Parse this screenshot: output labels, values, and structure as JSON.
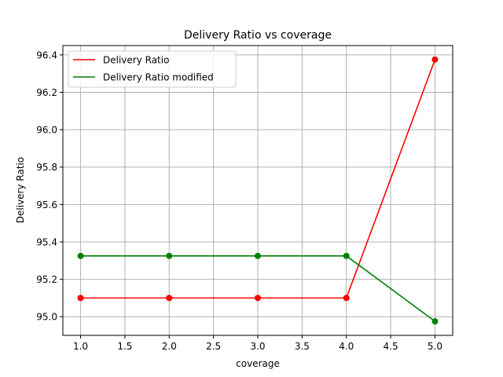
{
  "chart_data": {
    "type": "line",
    "title": "Delivery Ratio vs coverage",
    "xlabel": "coverage",
    "ylabel": "Delivery Ratio",
    "xlim": [
      0.8,
      5.2
    ],
    "ylim": [
      94.9,
      96.45
    ],
    "xticks": [
      1.0,
      1.5,
      2.0,
      2.5,
      3.0,
      3.5,
      4.0,
      4.5,
      5.0
    ],
    "xtick_labels": [
      "1.0",
      "1.5",
      "2.0",
      "2.5",
      "3.0",
      "3.5",
      "4.0",
      "4.5",
      "5.0"
    ],
    "yticks": [
      95.0,
      95.2,
      95.4,
      95.6,
      95.8,
      96.0,
      96.2,
      96.4
    ],
    "ytick_labels": [
      "95.0",
      "95.2",
      "95.4",
      "95.6",
      "95.8",
      "96.0",
      "96.2",
      "96.4"
    ],
    "grid": true,
    "legend_position": "upper-left",
    "x": [
      1,
      2,
      3,
      4,
      5
    ],
    "series": [
      {
        "name": "Delivery Ratio",
        "color": "#ff0000",
        "markers": true,
        "values": [
          95.1,
          95.1,
          95.1,
          95.1,
          96.375
        ]
      },
      {
        "name": "Delivery Ratio modified",
        "color": "#008000",
        "markers": true,
        "values": [
          95.325,
          95.325,
          95.325,
          95.325,
          94.975
        ]
      }
    ]
  }
}
